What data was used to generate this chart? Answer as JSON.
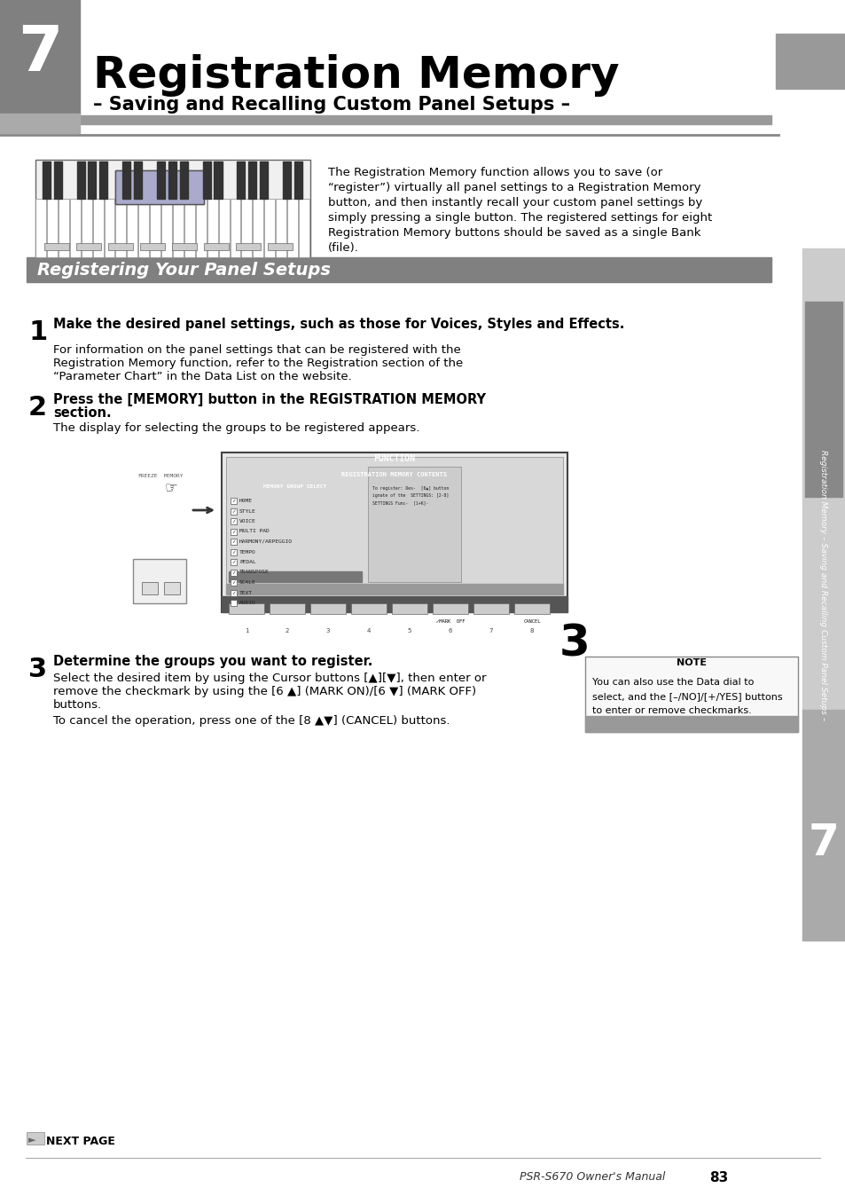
{
  "page_bg": "#ffffff",
  "chapter_num": "7",
  "chapter_bg": "#808080",
  "chapter_num_color": "#ffffff",
  "title": "Registration Memory",
  "subtitle": "– Saving and Recalling Custom Panel Setups –",
  "title_bar_color": "#808080",
  "section_header": "Registering Your Panel Setups",
  "section_header_bg": "#808080",
  "section_header_color": "#ffffff",
  "right_sidebar_label": "Registration Memory – Saving and Recalling Custom Panel Setups –",
  "right_chapter_bg": "#808080",
  "right_chapter_color": "#ffffff",
  "footer_text": "PSR-S670 Owner's Manual",
  "footer_page": "83",
  "intro_text": "The Registration Memory function allows you to save (or “register”) virtually all panel settings to a Registration Memory button, and then instantly recall your custom panel settings by simply pressing a single button. The registered settings for eight Registration Memory buttons should be saved as a single Bank (file).",
  "step1_num": "1",
  "step1_bold": "Make the desired panel settings, such as those for Voices, Styles and Effects.",
  "step1_body": "For information on the panel settings that can be registered with the Registration Memory function, refer to the Registration section of the “Parameter Chart” in the Data List on the website.",
  "step2_num": "2",
  "step2_bold": "Press the [MEMORY] button in the REGISTRATION MEMORY section.",
  "step2_body": "The display for selecting the groups to be registered appears.",
  "step3_num": "3",
  "step3_bold": "Determine the groups you want to register.",
  "step3_body1": "Select the desired item by using the Cursor buttons [▲][▼], then enter or remove the checkmark by using the [6 ▲] (MARK ON)/[6 ▼] (MARK OFF) buttons.",
  "step3_body2": "To cancel the operation, press one of the [8 ▲▼] (CANCEL) buttons.",
  "note_title": "NOTE",
  "note_text": "You can also use the Data dial to select, and the [–/NO]/[+/YES] buttons to enter or remove checkmarks.",
  "next_page_text": "NEXT PAGE"
}
